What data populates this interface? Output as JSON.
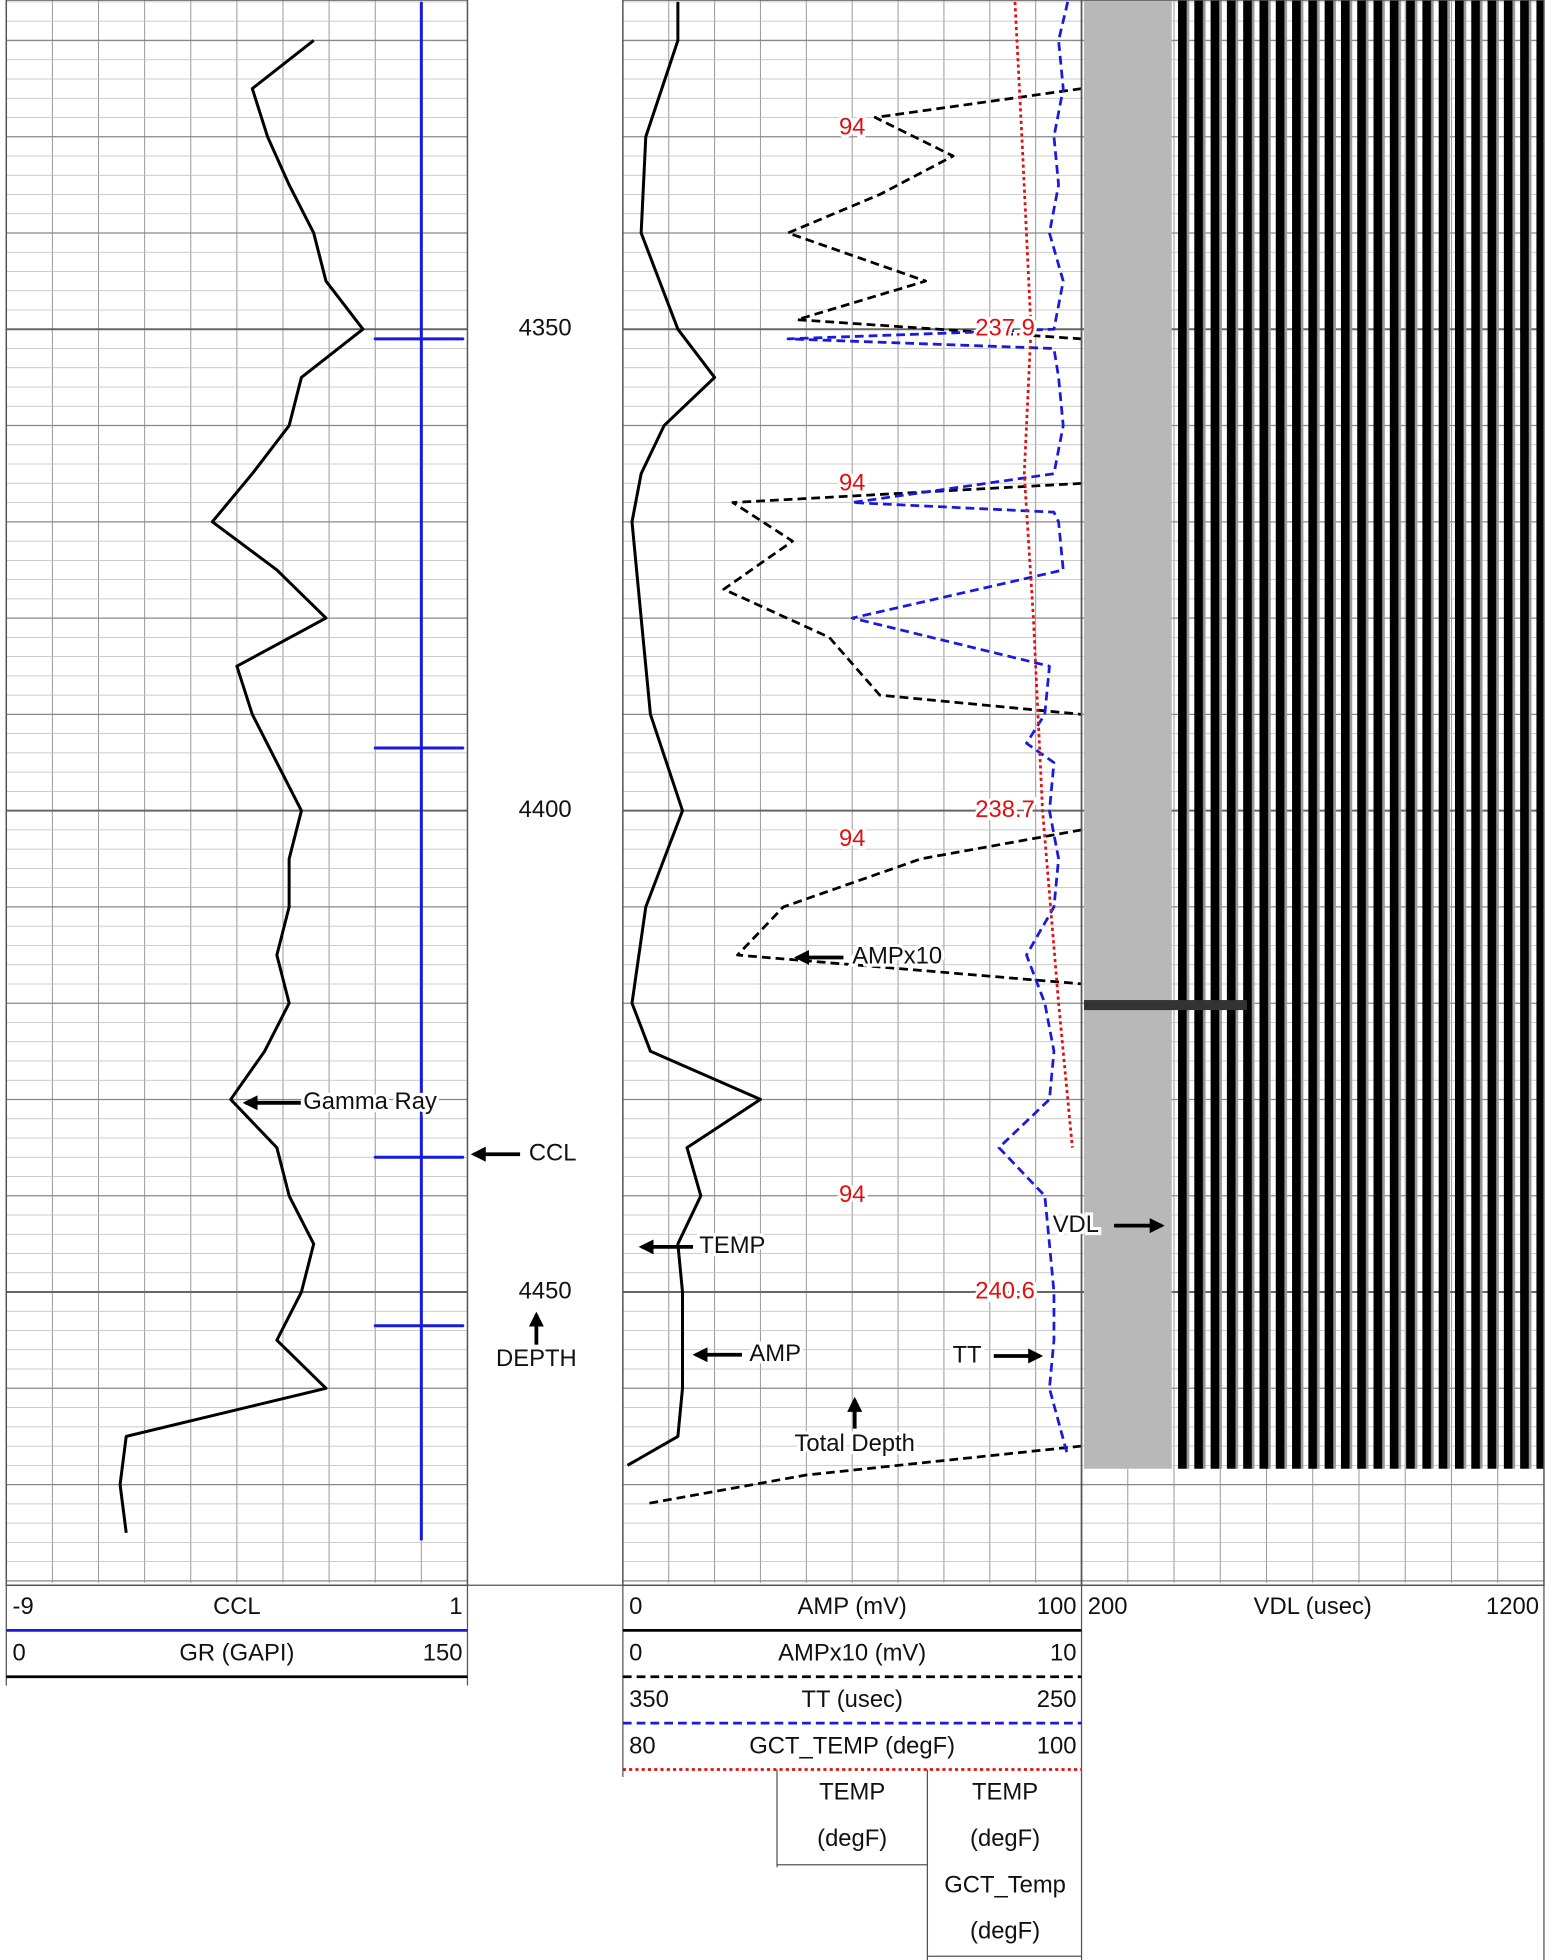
{
  "chart_data": {
    "type": "well-log",
    "depth": {
      "label": "DEPTH",
      "ylim": [
        4315.8,
        4480.2
      ],
      "yticks": [
        4350,
        4400,
        4450
      ]
    },
    "tracks": [
      {
        "curves": [
          {
            "name": "CCL",
            "xlim": [
              -9,
              1
            ],
            "color": "#1a1adc",
            "style": "solid",
            "depth": [
              4316,
              4351,
              4351,
              4351,
              4351,
              4393.5,
              4393.5,
              4393.5,
              4393.5,
              4436,
              4436,
              4436,
              4436,
              4453.5,
              4453.5,
              4453.5,
              4453.5,
              4475.8
            ],
            "values": [
              0,
              0,
              -1,
              0.9,
              0,
              0,
              -1,
              0.9,
              0,
              0,
              -1,
              0.9,
              0,
              0,
              -1,
              0.9,
              0,
              0
            ]
          },
          {
            "name": "GR (GAPI)",
            "xlim": [
              0,
              150
            ],
            "color": "#000000",
            "style": "solid",
            "depth": [
              4320,
              4325,
              4330,
              4335,
              4340,
              4345,
              4350,
              4355,
              4360,
              4365,
              4370,
              4375,
              4380,
              4385,
              4390,
              4395,
              4400,
              4405,
              4410,
              4415,
              4420,
              4425,
              4430,
              4435,
              4440,
              4445,
              4450,
              4455,
              4460,
              4465,
              4470,
              4475
            ],
            "values": [
              100,
              80,
              85,
              92,
              100,
              104,
              116,
              96,
              92,
              80,
              67,
              88,
              104,
              75,
              80,
              88,
              96,
              92,
              92,
              88,
              92,
              84,
              73,
              88,
              92,
              100,
              96,
              88,
              104,
              39,
              37,
              39
            ]
          }
        ]
      },
      {
        "curves": [
          {
            "name": "AMP (mV)",
            "xlim": [
              0,
              100
            ],
            "color": "#000000",
            "style": "solid",
            "depth": [
              4316,
              4320,
              4330,
              4340,
              4350,
              4355,
              4360,
              4365,
              4370,
              4380,
              4390,
              4400,
              4410,
              4420,
              4425,
              4430,
              4435,
              4440,
              4445,
              4450,
              4460,
              4465,
              4468
            ],
            "values": [
              12,
              12,
              5,
              4,
              12,
              20,
              9,
              4,
              2,
              4,
              6,
              13,
              5,
              2,
              6,
              30,
              14,
              17,
              12,
              13,
              13,
              12,
              1
            ]
          },
          {
            "name": "AMPx10 (mV)",
            "xlim": [
              0,
              10
            ],
            "color": "#000000",
            "style": "dashed",
            "depth": [
              4325,
              4328,
              4332,
              4336,
              4340,
              4345,
              4349,
              4351,
              4358,
              4366,
              4368,
              4372,
              4377,
              4382,
              4388,
              4390,
              4395,
              4402,
              4405,
              4410,
              4415,
              4418,
              4440,
              4466,
              4469,
              4472
            ],
            "values": [
              10,
              5.5,
              7.2,
              5.6,
              3.6,
              6.6,
              3.8,
              10,
              null,
              10,
              2.4,
              3.7,
              2.2,
              4.5,
              5.6,
              10,
              null,
              10,
              6.5,
              3.5,
              2.5,
              10,
              null,
              10,
              4,
              0.5
            ]
          },
          {
            "name": "TT (usec)",
            "xlim": [
              350,
              250
            ],
            "color": "#1a1adc",
            "style": "dashed",
            "depth": [
              4316,
              4320,
              4325,
              4330,
              4335,
              4340,
              4345,
              4350,
              4351,
              4352,
              4355,
              4360,
              4365,
              4368,
              4369,
              4370,
              4375,
              4380,
              4385,
              4390,
              4393,
              4395,
              4400,
              4405,
              4410,
              4415,
              4420,
              4425,
              4430,
              4435,
              4440,
              4445,
              4450,
              4455,
              4460,
              4467
            ],
            "values": [
              253,
              255,
              254,
              256,
              255,
              257,
              254,
              256,
              314,
              256,
              255,
              254,
              256,
              300,
              256,
              255,
              254,
              300,
              257,
              258,
              262,
              256,
              257,
              255,
              256,
              262,
              258,
              256,
              257,
              268,
              258,
              257,
              256,
              256,
              257,
              253
            ]
          },
          {
            "name": "GCT_TEMP (degF)",
            "xlim": [
              80,
              100
            ],
            "color": "#e01010",
            "style": "dotted",
            "depth": [
              4316,
              4330,
              4350,
              4365,
              4380,
              4400,
              4420,
              4435
            ],
            "values": [
              97.1,
              97.4,
              97.8,
              97.5,
              97.9,
              98.3,
              99.0,
              99.6
            ]
          }
        ]
      },
      {
        "curves": [
          {
            "name": "VDL (usec)",
            "xlim": [
              200,
              1200
            ]
          }
        ]
      }
    ],
    "readouts_left": [
      {
        "depth": 4329.1,
        "value": 94
      },
      {
        "depth": 4366.1,
        "value": 94
      },
      {
        "depth": 4403,
        "value": 94
      },
      {
        "depth": 4440,
        "value": 94
      }
    ],
    "readouts_right": [
      {
        "depth": 4350,
        "value": 237.9
      },
      {
        "depth": 4400,
        "value": 238.7
      },
      {
        "depth": 4450,
        "value": 240.6
      }
    ],
    "annotations": {
      "gamma_ray": "Gamma Ray",
      "ccl": "CCL",
      "ampx10": "AMPx10",
      "temp": "TEMP",
      "amp": "AMP",
      "tt": "TT",
      "vdl": "VDL",
      "total_depth": "Total Depth"
    },
    "temp_headers": [
      {
        "name": "TEMP",
        "unit": "(degF)"
      },
      {
        "name": "TEMP",
        "unit": "(degF)"
      },
      {
        "name": "GCT_Temp",
        "unit": "(degF)"
      }
    ]
  }
}
